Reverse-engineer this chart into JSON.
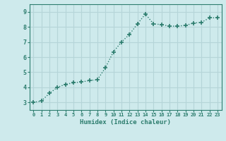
{
  "x": [
    0,
    1,
    2,
    3,
    4,
    5,
    6,
    7,
    8,
    9,
    10,
    11,
    12,
    13,
    14,
    15,
    16,
    17,
    18,
    19,
    20,
    21,
    22,
    23
  ],
  "y": [
    3.0,
    3.1,
    3.6,
    4.0,
    4.2,
    4.3,
    4.35,
    4.45,
    4.5,
    5.3,
    6.35,
    7.0,
    7.5,
    8.2,
    8.85,
    8.2,
    8.15,
    8.05,
    8.05,
    8.1,
    8.25,
    8.3,
    8.6,
    8.6
  ],
  "line_color": "#2d7d6e",
  "bg_color": "#ceeaec",
  "grid_color": "#b5d5d8",
  "xlabel": "Humidex (Indice chaleur)",
  "ylim": [
    2.5,
    9.5
  ],
  "xlim": [
    -0.5,
    23.5
  ],
  "yticks": [
    3,
    4,
    5,
    6,
    7,
    8,
    9
  ],
  "xticks": [
    0,
    1,
    2,
    3,
    4,
    5,
    6,
    7,
    8,
    9,
    10,
    11,
    12,
    13,
    14,
    15,
    16,
    17,
    18,
    19,
    20,
    21,
    22,
    23
  ],
  "xtick_labels": [
    "0",
    "1",
    "2",
    "3",
    "4",
    "5",
    "6",
    "7",
    "8",
    "9",
    "10",
    "11",
    "12",
    "13",
    "14",
    "15",
    "16",
    "17",
    "18",
    "19",
    "20",
    "21",
    "22",
    "23"
  ],
  "tick_color": "#2d7d6e",
  "label_color": "#2d7d6e",
  "marker": "+",
  "marker_size": 4,
  "line_width": 1.0
}
